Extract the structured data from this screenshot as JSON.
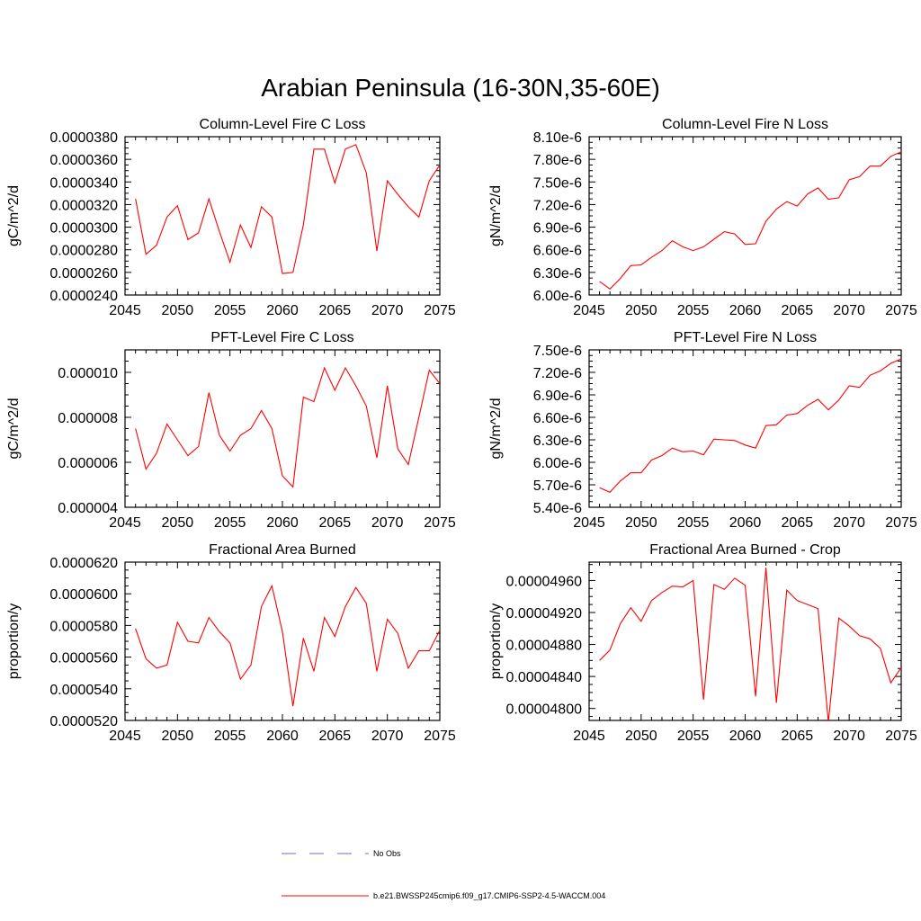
{
  "figure": {
    "title": "Arabian Peninsula (16-30N,35-60E)"
  },
  "colors": {
    "model_line": "#ff0000",
    "obs_line": "#6b6bd6",
    "axes": "#000000"
  },
  "legend": {
    "entries": [
      {
        "label": "No Obs",
        "style": "dashed",
        "color": "#6b6bd6"
      },
      {
        "label": "b.e21.BWSSP245cmip6.f09_g17.CMIP6-SSP2-4.5-WACCM.004",
        "style": "solid",
        "color": "#ff0000"
      }
    ]
  },
  "chart_data": [
    {
      "type": "line",
      "title": "Column-Level Fire C Loss",
      "ylabel": "gC/m^2/d",
      "xlim": [
        2045,
        2075
      ],
      "ylim": [
        2.4e-05,
        3.8e-05
      ],
      "xticks": [
        2045,
        2050,
        2055,
        2060,
        2065,
        2070,
        2075
      ],
      "xtick_labels": [
        "2045",
        "2050",
        "2055",
        "2060",
        "2065",
        "2070",
        "2075"
      ],
      "yticks": [
        2.4e-05,
        2.6e-05,
        2.8e-05,
        3e-05,
        3.2e-05,
        3.4e-05,
        3.6e-05,
        3.8e-05
      ],
      "ytick_labels": [
        "0.0000240",
        "0.0000260",
        "0.0000280",
        "0.0000300",
        "0.0000320",
        "0.0000340",
        "0.0000360",
        "0.0000380"
      ],
      "x": [
        2046,
        2047,
        2048,
        2049,
        2050,
        2051,
        2052,
        2053,
        2054,
        2055,
        2056,
        2057,
        2058,
        2059,
        2060,
        2061,
        2062,
        2063,
        2064,
        2065,
        2066,
        2067,
        2068,
        2069,
        2070,
        2071,
        2072,
        2073,
        2074,
        2075
      ],
      "series": [
        {
          "values": [
            3.25e-05,
            2.76e-05,
            2.84e-05,
            3.09e-05,
            3.19e-05,
            2.89e-05,
            2.95e-05,
            3.25e-05,
            2.96e-05,
            2.69e-05,
            3.02e-05,
            2.82e-05,
            3.18e-05,
            3.09e-05,
            2.59e-05,
            2.6e-05,
            3.02e-05,
            3.69e-05,
            3.69e-05,
            3.39e-05,
            3.69e-05,
            3.73e-05,
            3.48e-05,
            2.79e-05,
            3.41e-05,
            3.29e-05,
            3.18e-05,
            3.09e-05,
            3.41e-05,
            3.55e-05
          ]
        }
      ]
    },
    {
      "type": "line",
      "title": "Column-Level Fire N Loss",
      "ylabel": "gN/m^2/d",
      "xlim": [
        2045,
        2075
      ],
      "ylim": [
        6e-06,
        8.1e-06
      ],
      "xticks": [
        2045,
        2050,
        2055,
        2060,
        2065,
        2070,
        2075
      ],
      "xtick_labels": [
        "2045",
        "2050",
        "2055",
        "2060",
        "2065",
        "2070",
        "2075"
      ],
      "yticks": [
        6e-06,
        6.3e-06,
        6.6e-06,
        6.9e-06,
        7.2e-06,
        7.5e-06,
        7.8e-06,
        8.1e-06
      ],
      "ytick_labels": [
        "6.00e-6",
        "6.30e-6",
        "6.60e-6",
        "6.90e-6",
        "7.20e-6",
        "7.50e-6",
        "7.80e-6",
        "8.10e-6"
      ],
      "x": [
        2046,
        2047,
        2048,
        2049,
        2050,
        2051,
        2052,
        2053,
        2054,
        2055,
        2056,
        2057,
        2058,
        2059,
        2060,
        2061,
        2062,
        2063,
        2064,
        2065,
        2066,
        2067,
        2068,
        2069,
        2070,
        2071,
        2072,
        2073,
        2074,
        2075
      ],
      "series": [
        {
          "values": [
            6.18e-06,
            6.08e-06,
            6.22e-06,
            6.39e-06,
            6.4e-06,
            6.5e-06,
            6.59e-06,
            6.72e-06,
            6.64e-06,
            6.59e-06,
            6.64e-06,
            6.74e-06,
            6.84e-06,
            6.81e-06,
            6.67e-06,
            6.68e-06,
            6.98e-06,
            7.14e-06,
            7.24e-06,
            7.18e-06,
            7.34e-06,
            7.42e-06,
            7.27e-06,
            7.29e-06,
            7.53e-06,
            7.57e-06,
            7.71e-06,
            7.71e-06,
            7.84e-06,
            7.9e-06
          ]
        }
      ]
    },
    {
      "type": "line",
      "title": "PFT-Level Fire C Loss",
      "ylabel": "gC/m^2/d",
      "xlim": [
        2045,
        2075
      ],
      "ylim": [
        4e-06,
        1.1e-05
      ],
      "xticks": [
        2045,
        2050,
        2055,
        2060,
        2065,
        2070,
        2075
      ],
      "xtick_labels": [
        "2045",
        "2050",
        "2055",
        "2060",
        "2065",
        "2070",
        "2075"
      ],
      "yticks": [
        4e-06,
        6e-06,
        8e-06,
        1e-05
      ],
      "ytick_labels": [
        "0.000004",
        "0.000006",
        "0.000008",
        "0.000010"
      ],
      "x": [
        2046,
        2047,
        2048,
        2049,
        2050,
        2051,
        2052,
        2053,
        2054,
        2055,
        2056,
        2057,
        2058,
        2059,
        2060,
        2061,
        2062,
        2063,
        2064,
        2065,
        2066,
        2067,
        2068,
        2069,
        2070,
        2071,
        2072,
        2073,
        2074,
        2075
      ],
      "series": [
        {
          "values": [
            7.5e-06,
            5.7e-06,
            6.4e-06,
            7.7e-06,
            7e-06,
            6.3e-06,
            6.7e-06,
            9.1e-06,
            7.2e-06,
            6.5e-06,
            7.2e-06,
            7.5e-06,
            8.3e-06,
            7.5e-06,
            5.4e-06,
            4.9e-06,
            8.9e-06,
            8.7e-06,
            1.02e-05,
            9.2e-06,
            1.02e-05,
            9.4e-06,
            8.5e-06,
            6.2e-06,
            9.4e-06,
            6.6e-06,
            5.9e-06,
            8e-06,
            1.01e-05,
            9.5e-06
          ]
        }
      ]
    },
    {
      "type": "line",
      "title": "PFT-Level Fire N Loss",
      "ylabel": "gN/m^2/d",
      "xlim": [
        2045,
        2075
      ],
      "ylim": [
        5.4e-06,
        7.5e-06
      ],
      "xticks": [
        2045,
        2050,
        2055,
        2060,
        2065,
        2070,
        2075
      ],
      "xtick_labels": [
        "2045",
        "2050",
        "2055",
        "2060",
        "2065",
        "2070",
        "2075"
      ],
      "yticks": [
        5.4e-06,
        5.7e-06,
        6e-06,
        6.3e-06,
        6.6e-06,
        6.9e-06,
        7.2e-06,
        7.5e-06
      ],
      "ytick_labels": [
        "5.40e-6",
        "5.70e-6",
        "6.00e-6",
        "6.30e-6",
        "6.60e-6",
        "6.90e-6",
        "7.20e-6",
        "7.50e-6"
      ],
      "x": [
        2046,
        2047,
        2048,
        2049,
        2050,
        2051,
        2052,
        2053,
        2054,
        2055,
        2056,
        2057,
        2058,
        2059,
        2060,
        2061,
        2062,
        2063,
        2064,
        2065,
        2066,
        2067,
        2068,
        2069,
        2070,
        2071,
        2072,
        2073,
        2074,
        2075
      ],
      "series": [
        {
          "values": [
            5.66e-06,
            5.6e-06,
            5.75e-06,
            5.86e-06,
            5.86e-06,
            6.03e-06,
            6.09e-06,
            6.19e-06,
            6.14e-06,
            6.15e-06,
            6.1e-06,
            6.31e-06,
            6.3e-06,
            6.29e-06,
            6.23e-06,
            6.19e-06,
            6.49e-06,
            6.5e-06,
            6.63e-06,
            6.65e-06,
            6.76e-06,
            6.84e-06,
            6.7e-06,
            6.83e-06,
            7.02e-06,
            7e-06,
            7.16e-06,
            7.22e-06,
            7.32e-06,
            7.38e-06
          ]
        }
      ]
    },
    {
      "type": "line",
      "title": "Fractional Area Burned",
      "ylabel": "proportion/y",
      "xlim": [
        2045,
        2075
      ],
      "ylim": [
        5.2e-05,
        6.2e-05
      ],
      "xticks": [
        2045,
        2050,
        2055,
        2060,
        2065,
        2070,
        2075
      ],
      "xtick_labels": [
        "2045",
        "2050",
        "2055",
        "2060",
        "2065",
        "2070",
        "2075"
      ],
      "yticks": [
        5.2e-05,
        5.4e-05,
        5.6e-05,
        5.8e-05,
        6e-05,
        6.2e-05
      ],
      "ytick_labels": [
        "0.0000520",
        "0.0000540",
        "0.0000560",
        "0.0000580",
        "0.0000600",
        "0.0000620"
      ],
      "x": [
        2046,
        2047,
        2048,
        2049,
        2050,
        2051,
        2052,
        2053,
        2054,
        2055,
        2056,
        2057,
        2058,
        2059,
        2060,
        2061,
        2062,
        2063,
        2064,
        2065,
        2066,
        2067,
        2068,
        2069,
        2070,
        2071,
        2072,
        2073,
        2074,
        2075
      ],
      "series": [
        {
          "values": [
            5.78e-05,
            5.59e-05,
            5.53e-05,
            5.55e-05,
            5.82e-05,
            5.7e-05,
            5.69e-05,
            5.85e-05,
            5.76e-05,
            5.69e-05,
            5.46e-05,
            5.55e-05,
            5.92e-05,
            6.05e-05,
            5.76e-05,
            5.29e-05,
            5.72e-05,
            5.51e-05,
            5.85e-05,
            5.73e-05,
            5.92e-05,
            6.04e-05,
            5.94e-05,
            5.51e-05,
            5.84e-05,
            5.75e-05,
            5.53e-05,
            5.64e-05,
            5.64e-05,
            5.77e-05
          ]
        }
      ]
    },
    {
      "type": "line",
      "title": "Fractional Area Burned - Crop",
      "ylabel": "proportion/y",
      "xlim": [
        2045,
        2075
      ],
      "ylim": [
        4.785e-05,
        4.983e-05
      ],
      "xticks": [
        2045,
        2050,
        2055,
        2060,
        2065,
        2070,
        2075
      ],
      "xtick_labels": [
        "2045",
        "2050",
        "2055",
        "2060",
        "2065",
        "2070",
        "2075"
      ],
      "yticks": [
        4.8e-05,
        4.84e-05,
        4.88e-05,
        4.92e-05,
        4.96e-05
      ],
      "ytick_labels": [
        "0.00004800",
        "0.00004840",
        "0.00004880",
        "0.00004920",
        "0.00004960"
      ],
      "x": [
        2046,
        2047,
        2048,
        2049,
        2050,
        2051,
        2052,
        2053,
        2054,
        2055,
        2056,
        2057,
        2058,
        2059,
        2060,
        2061,
        2062,
        2063,
        2064,
        2065,
        2066,
        2067,
        2068,
        2069,
        2070,
        2071,
        2072,
        2073,
        2074,
        2075
      ],
      "series": [
        {
          "values": [
            4.86e-05,
            4.873e-05,
            4.906e-05,
            4.926e-05,
            4.909e-05,
            4.935e-05,
            4.945e-05,
            4.953e-05,
            4.952e-05,
            4.96e-05,
            4.811e-05,
            4.955e-05,
            4.949e-05,
            4.963e-05,
            4.954e-05,
            4.815e-05,
            4.976e-05,
            4.807e-05,
            4.948e-05,
            4.935e-05,
            4.93e-05,
            4.925e-05,
            4.783e-05,
            4.913e-05,
            4.903e-05,
            4.891e-05,
            4.887e-05,
            4.875e-05,
            4.832e-05,
            4.851e-05
          ]
        }
      ]
    }
  ]
}
